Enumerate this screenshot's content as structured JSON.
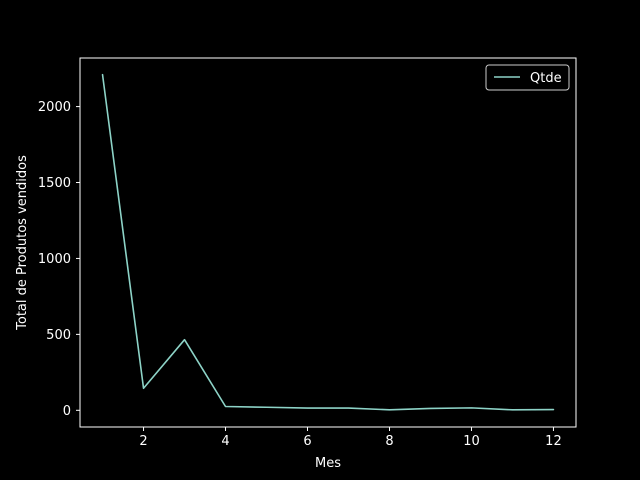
{
  "chart_data": {
    "type": "line",
    "xlabel": "Mes",
    "ylabel": "Total de Produtos vendidos",
    "x": [
      1,
      2,
      3,
      4,
      5,
      6,
      7,
      8,
      9,
      10,
      11,
      12
    ],
    "series": [
      {
        "name": "Qtde",
        "color": "#8dd3c7",
        "values": [
          2210,
          145,
          465,
          25,
          20,
          15,
          15,
          3,
          12,
          16,
          3,
          5
        ]
      }
    ],
    "xlim": [
      0.45,
      12.55
    ],
    "ylim": [
      -110,
      2320
    ],
    "xticks": [
      2,
      4,
      6,
      8,
      10,
      12
    ],
    "yticks": [
      0,
      500,
      1000,
      1500,
      2000
    ],
    "grid": false,
    "legend_position": "top-right"
  }
}
